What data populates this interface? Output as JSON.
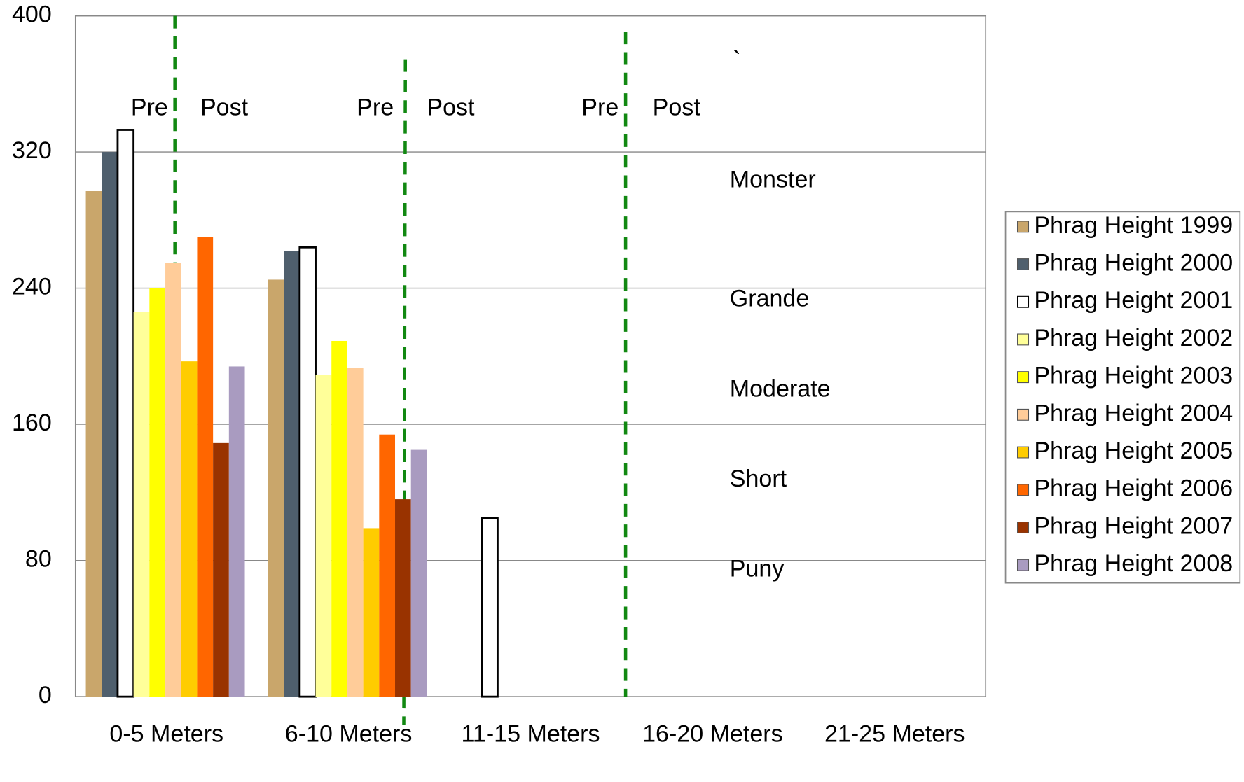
{
  "chart_data": {
    "type": "bar",
    "categories": [
      "0-5 Meters",
      "6-10 Meters",
      "11-15 Meters",
      "16-20 Meters",
      "21-25 Meters"
    ],
    "series": [
      {
        "name": "Phrag Height 1999",
        "color": "#c9a66b",
        "values": [
          297,
          245,
          null,
          null,
          null
        ]
      },
      {
        "name": "Phrag Height 2000",
        "color": "#4f5f6d",
        "values": [
          320,
          262,
          null,
          null,
          null
        ]
      },
      {
        "name": "Phrag Height 2001",
        "color": "#ffffff",
        "values": [
          333,
          264,
          105,
          null,
          null
        ]
      },
      {
        "name": "Phrag Height 2002",
        "color": "#ffff99",
        "values": [
          226,
          189,
          null,
          null,
          null
        ]
      },
      {
        "name": "Phrag Height 2003",
        "color": "#ffff00",
        "values": [
          240,
          209,
          null,
          null,
          null
        ]
      },
      {
        "name": "Phrag Height 2004",
        "color": "#ffcc99",
        "values": [
          255,
          193,
          null,
          null,
          null
        ]
      },
      {
        "name": "Phrag Height 2005",
        "color": "#ffcc00",
        "values": [
          197,
          99,
          null,
          null,
          null
        ]
      },
      {
        "name": "Phrag Height 2006",
        "color": "#ff6600",
        "values": [
          270,
          154,
          null,
          null,
          null
        ]
      },
      {
        "name": "Phrag Height 2007",
        "color": "#993300",
        "values": [
          149,
          116,
          null,
          null,
          null
        ]
      },
      {
        "name": "Phrag Height 2008",
        "color": "#a99bc0",
        "values": [
          194,
          145,
          null,
          null,
          null
        ]
      }
    ],
    "ylim": [
      0,
      400
    ],
    "yticks": [
      0,
      80,
      160,
      240,
      320,
      400
    ],
    "grid": true,
    "legend": "right",
    "annotations": [
      "Pre",
      "Post",
      "Pre",
      "Post",
      "Pre",
      "Post",
      "`",
      "Monster",
      "Grande",
      "Moderate",
      "Short",
      "Puny"
    ]
  }
}
